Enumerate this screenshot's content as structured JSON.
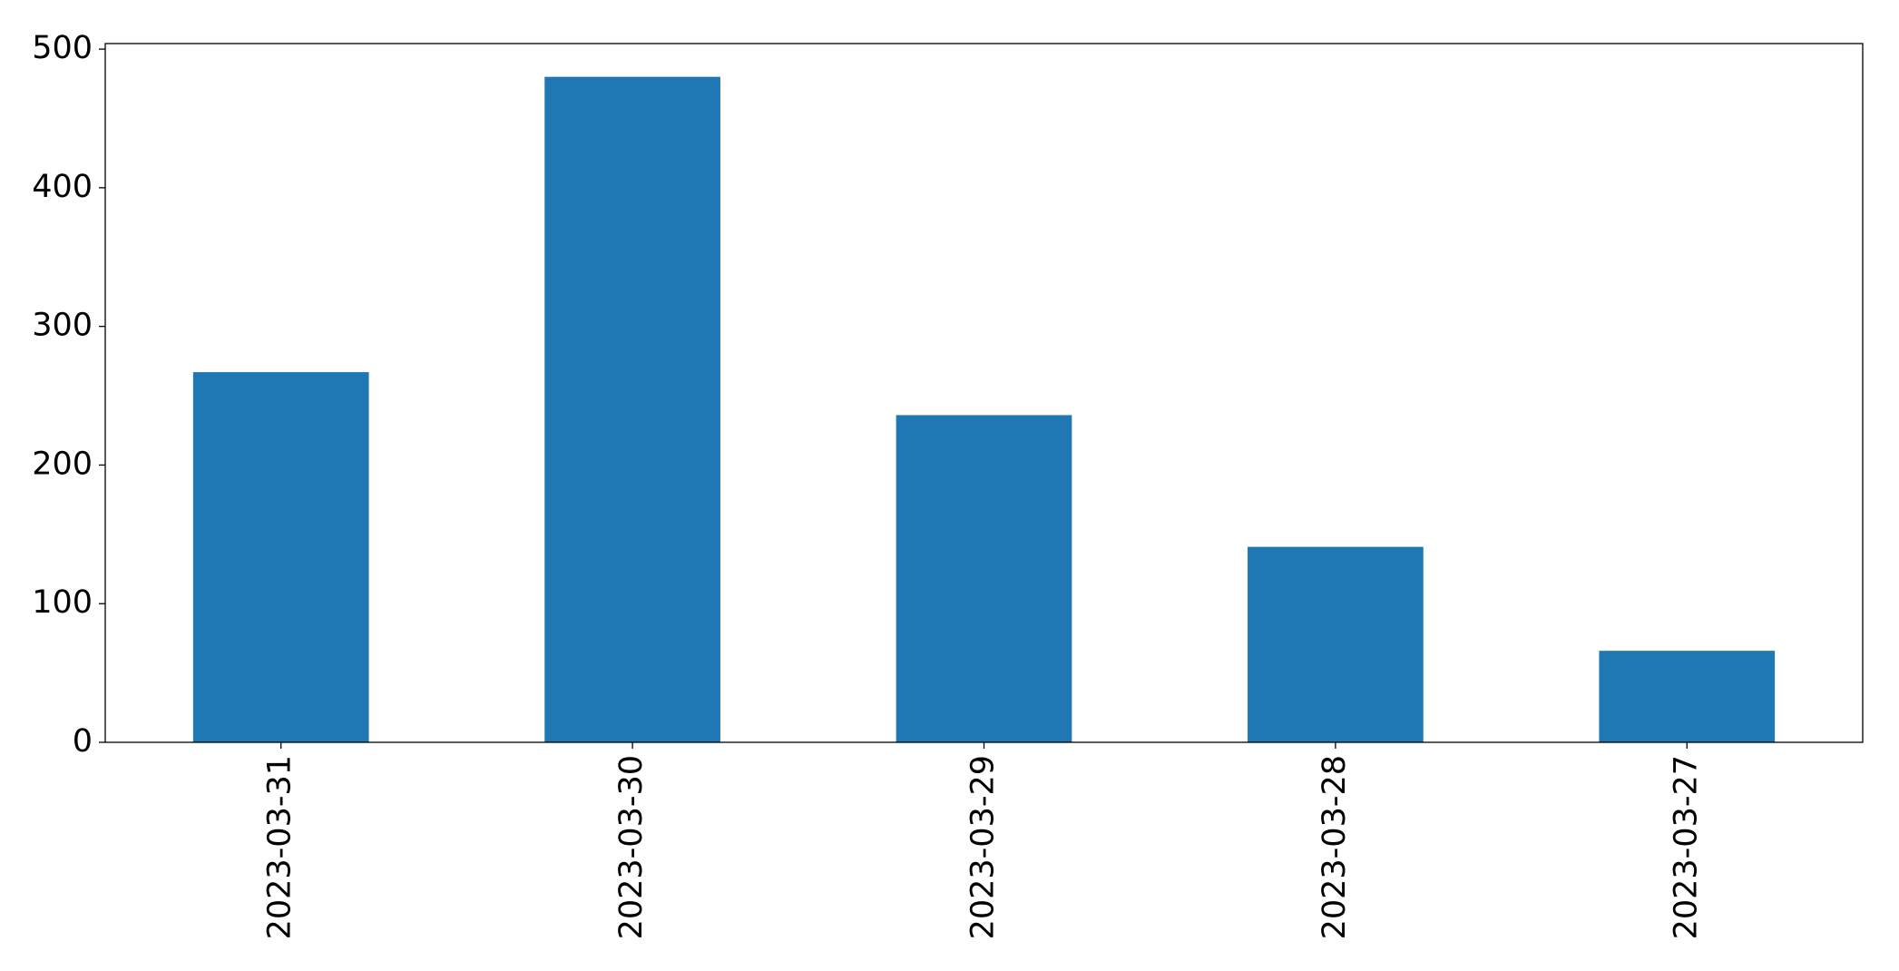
{
  "chart_data": {
    "type": "bar",
    "categories": [
      "2023-03-31",
      "2023-03-30",
      "2023-03-29",
      "2023-03-28",
      "2023-03-27"
    ],
    "values": [
      267,
      480,
      236,
      141,
      66
    ],
    "color": "#1f77b4",
    "ylim": [
      0,
      504
    ],
    "yticks": [
      0,
      100,
      200,
      300,
      400,
      500
    ],
    "grid": false
  }
}
